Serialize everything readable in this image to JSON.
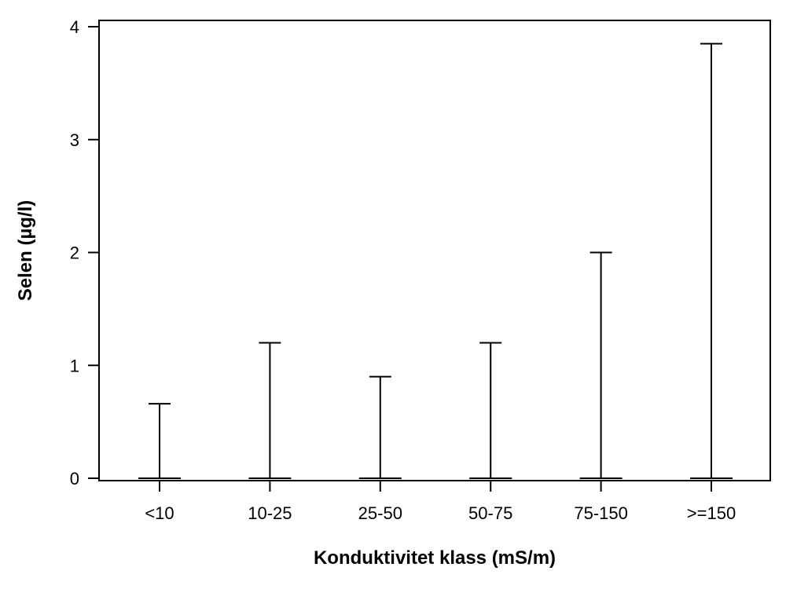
{
  "chart_data": {
    "type": "range",
    "categories": [
      "<10",
      "10-25",
      "25-50",
      "50-75",
      "75-150",
      ">=150"
    ],
    "series": [
      {
        "min": [
          0,
          0,
          0,
          0,
          0,
          0
        ],
        "max": [
          0.66,
          1.2,
          0.9,
          1.2,
          2.0,
          3.85
        ]
      }
    ],
    "xlabel": "Konduktivitet klass (mS/m)",
    "ylabel": "Selen (µg/l)",
    "ylim": [
      0,
      4
    ],
    "yticks": [
      0,
      1,
      2,
      3,
      4
    ],
    "grid": false
  }
}
